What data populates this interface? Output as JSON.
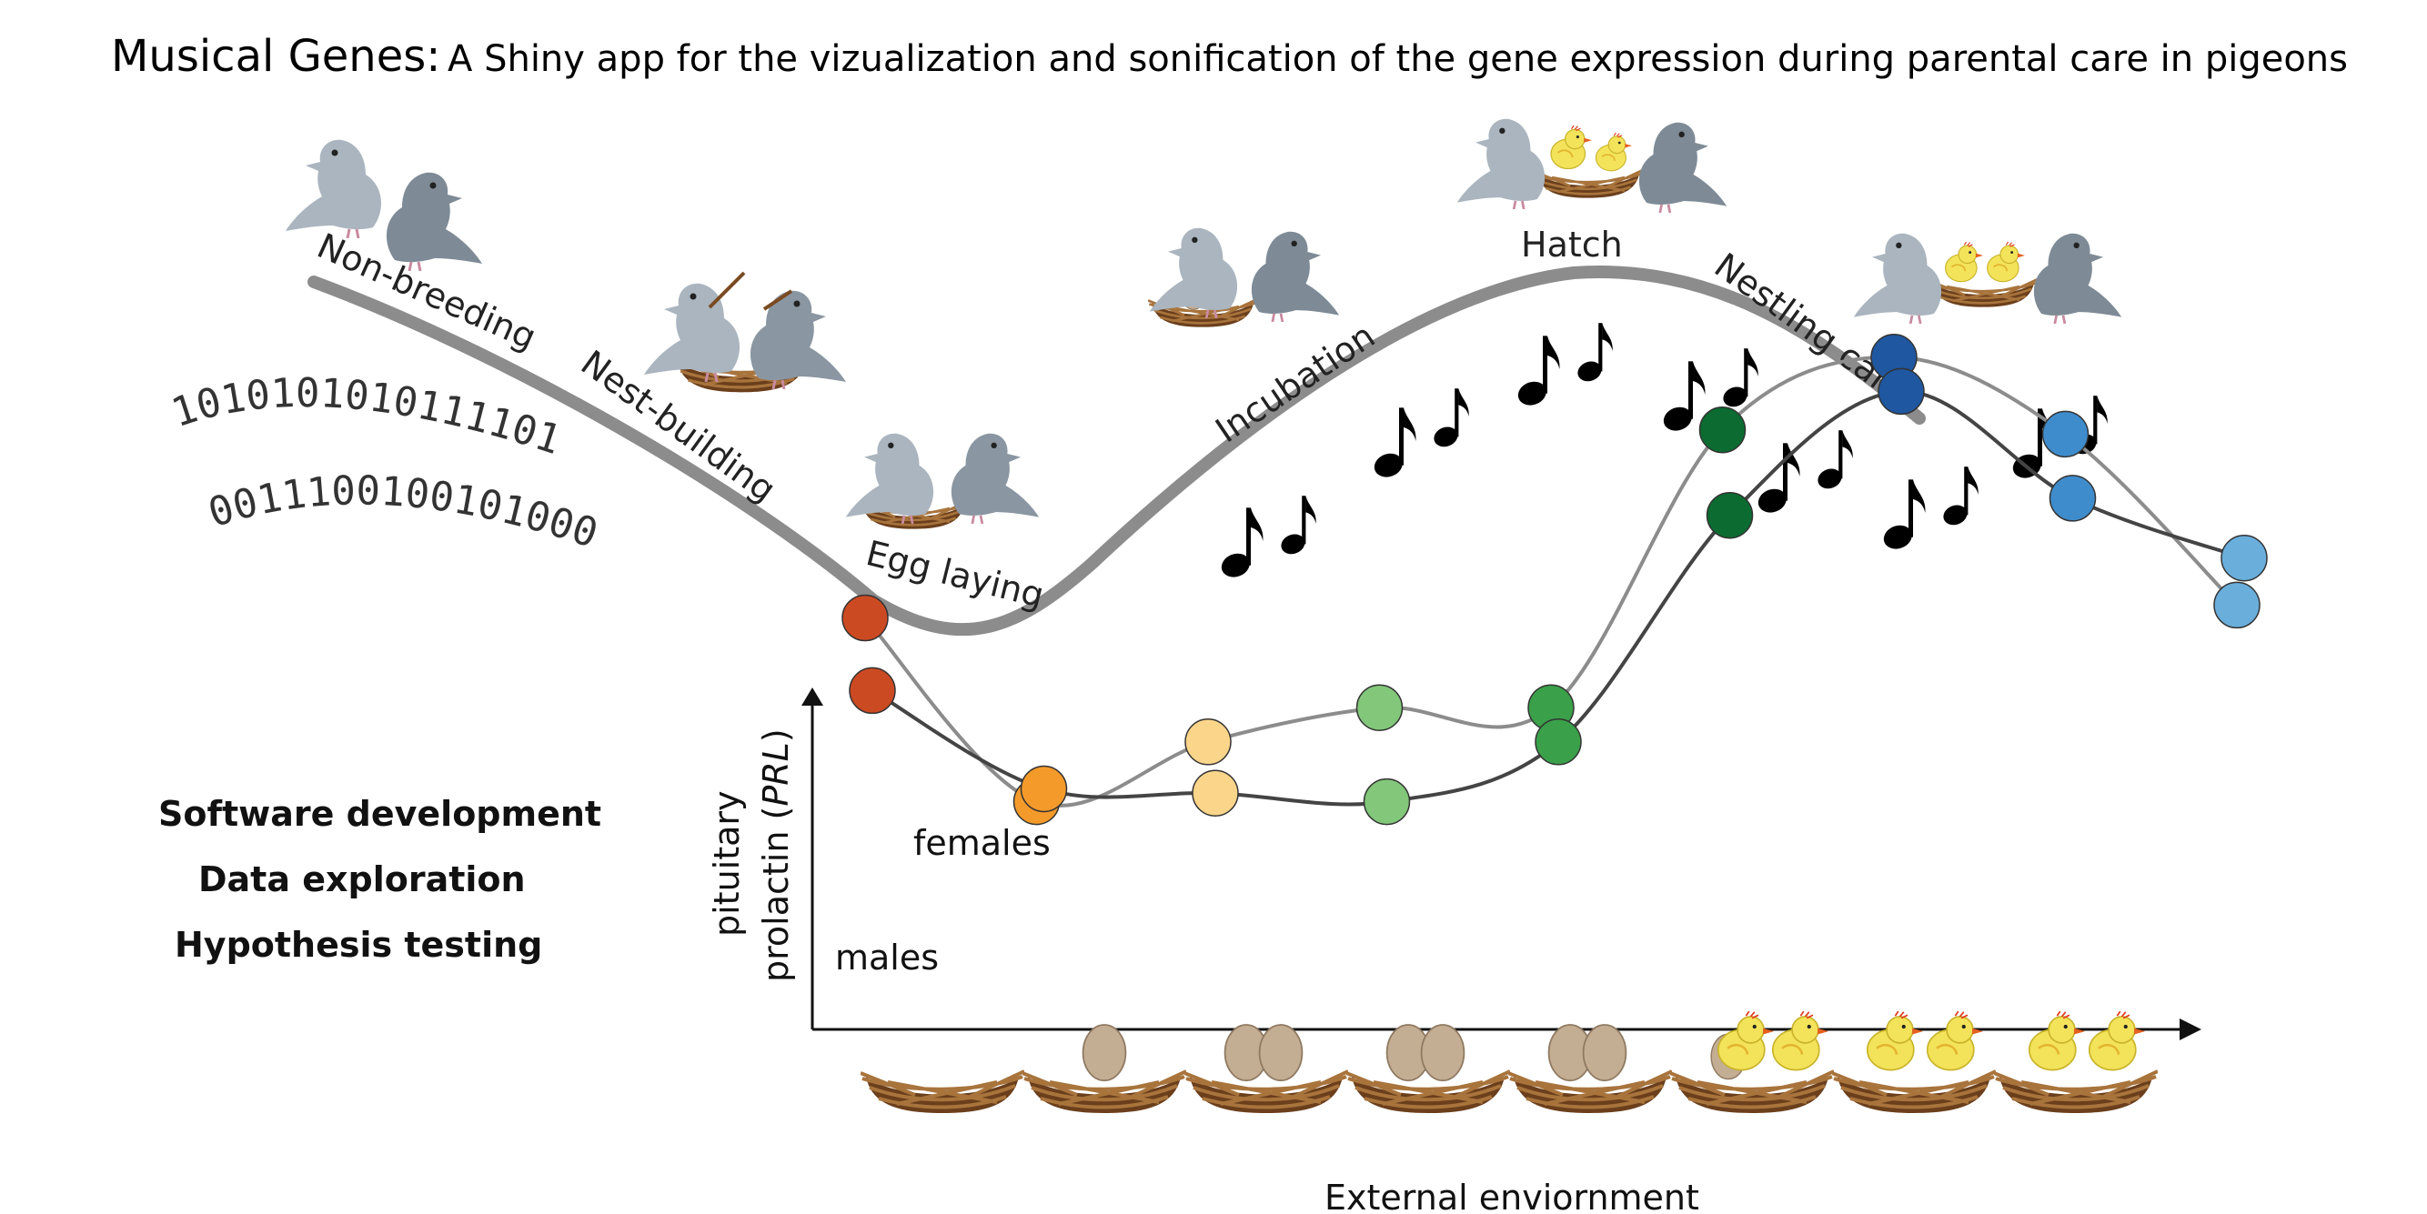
{
  "title": {
    "main": "Musical Genes:",
    "subtitle": "A Shiny app for the vizualization and sonification of the gene expression during parental care in pigeons"
  },
  "stages": [
    {
      "label": "Non-breeding"
    },
    {
      "label": "Nest-building"
    },
    {
      "label": "Egg laying"
    },
    {
      "label": "Incubation"
    },
    {
      "label": "Hatch"
    },
    {
      "label": "Nestling care"
    }
  ],
  "binary": [
    "1010101010111101",
    "0011100100101000"
  ],
  "uses": [
    "Software development",
    "Data exploration",
    "Hypothesis testing"
  ],
  "icons": {
    "pigeon": "pigeon-icon",
    "nest": "nest-icon",
    "egg": "egg-icon",
    "chick": "chick-icon",
    "note": "eighth-note-icon"
  },
  "colors": {
    "curve": "#8c8c8c",
    "pigeon_light": "#aab5bf",
    "pigeon_dark": "#7e8b96",
    "nest": "#7a4a21",
    "egg": "#c7b29a",
    "chick": "#f3e35a"
  },
  "chart_data": {
    "type": "line",
    "ylabel_line1": "pituitary",
    "ylabel_line2": "prolactin (",
    "ylabel_gene": "PRL",
    "ylabel_close": ")",
    "xlabel": "External enviornment",
    "x": [
      1,
      2,
      3,
      4,
      5,
      6,
      7,
      8,
      9
    ],
    "series": [
      {
        "name": "females",
        "line_color": "#8c8c8c",
        "values": [
          0.75,
          0.32,
          0.46,
          0.54,
          0.54,
          1.19,
          1.36,
          1.18,
          0.78
        ]
      },
      {
        "name": "males",
        "line_color": "#444444",
        "values": [
          0.58,
          0.35,
          0.34,
          0.32,
          0.46,
          0.99,
          1.28,
          1.03,
          0.89
        ]
      }
    ],
    "point_colors": [
      "#cc4a22",
      "#f39a2a",
      "#fbd58a",
      "#82c77a",
      "#3aa049",
      "#0b6b30",
      "#1f57a0",
      "#3f8ccc",
      "#6aaedc"
    ],
    "nests": [
      {
        "eggs": 0,
        "chicks": 0
      },
      {
        "eggs": 1,
        "chicks": 0
      },
      {
        "eggs": 2,
        "chicks": 0
      },
      {
        "eggs": 2,
        "chicks": 0
      },
      {
        "eggs": 2,
        "chicks": 0
      },
      {
        "eggs": 1,
        "chicks": 2
      },
      {
        "eggs": 0,
        "chicks": 2
      },
      {
        "eggs": 0,
        "chicks": 2
      }
    ]
  }
}
